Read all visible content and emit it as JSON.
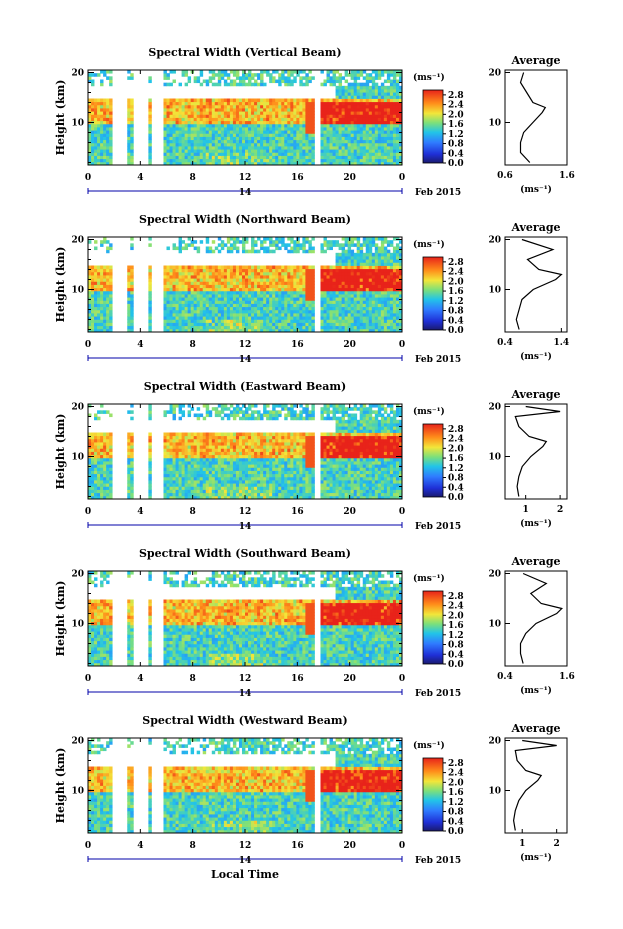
{
  "page": {
    "xlabel": "Local Time",
    "date_label": "Feb 2015",
    "day_label": "14",
    "ylabel": "Height (km)",
    "avg_title": "Average",
    "unit": "(ms⁻¹)",
    "avg_xlabel": "(ms⁻¹)"
  },
  "chart_data": [
    {
      "type": "heatmap",
      "title": "Spectral Width (Vertical Beam)",
      "xlabel": "Local Time",
      "ylabel": "Height (km)",
      "xlim": [
        0,
        24
      ],
      "ylim": [
        1.5,
        20.5
      ],
      "x_ticks": [
        "0",
        "4",
        "8",
        "12",
        "16",
        "20",
        "0"
      ],
      "y_ticks": [
        "20",
        "10"
      ],
      "colorbar": {
        "ticks": [
          "0.0",
          "0.4",
          "0.8",
          "1.2",
          "1.6",
          "2.0",
          "2.4",
          "2.8"
        ],
        "range": [
          0,
          3
        ]
      },
      "gaps_hours": [
        [
          1.8,
          2.9
        ],
        [
          3.4,
          4.5
        ],
        [
          4.9,
          5.8
        ],
        [
          17.2,
          17.8
        ]
      ],
      "avg_profile": {
        "xlim": [
          0.6,
          1.6
        ],
        "x_ticks": [
          "0.6",
          "1.6"
        ],
        "heights": [
          2,
          4,
          6,
          8,
          10,
          12,
          13,
          14,
          16,
          18,
          20
        ],
        "values": [
          1.0,
          0.85,
          0.85,
          0.9,
          1.05,
          1.2,
          1.25,
          1.05,
          0.95,
          0.85,
          0.9
        ]
      }
    },
    {
      "type": "heatmap",
      "title": "Spectral Width (Northward Beam)",
      "xlabel": "Local Time",
      "ylabel": "Height (km)",
      "xlim": [
        0,
        24
      ],
      "ylim": [
        1.5,
        20.5
      ],
      "x_ticks": [
        "0",
        "4",
        "8",
        "12",
        "16",
        "20",
        "0"
      ],
      "y_ticks": [
        "20",
        "10"
      ],
      "colorbar": {
        "ticks": [
          "0.0",
          "0.4",
          "0.8",
          "1.2",
          "1.6",
          "2.0",
          "2.4",
          "2.8"
        ],
        "range": [
          0,
          3
        ]
      },
      "gaps_hours": [
        [
          1.8,
          2.9
        ],
        [
          3.4,
          4.5
        ],
        [
          4.9,
          5.8
        ],
        [
          17.2,
          17.8
        ]
      ],
      "avg_profile": {
        "xlim": [
          0.4,
          1.5
        ],
        "x_ticks": [
          "0.4",
          "1.4"
        ],
        "heights": [
          2,
          4,
          6,
          8,
          10,
          12,
          13,
          14,
          16,
          18,
          20
        ],
        "values": [
          0.65,
          0.6,
          0.65,
          0.7,
          0.9,
          1.3,
          1.4,
          1.0,
          0.8,
          1.25,
          0.7
        ]
      }
    },
    {
      "type": "heatmap",
      "title": "Spectral Width (Eastward Beam)",
      "xlabel": "Local Time",
      "ylabel": "Height (km)",
      "xlim": [
        0,
        24
      ],
      "ylim": [
        1.5,
        20.5
      ],
      "x_ticks": [
        "0",
        "4",
        "8",
        "12",
        "16",
        "20",
        "0"
      ],
      "y_ticks": [
        "20",
        "10"
      ],
      "colorbar": {
        "ticks": [
          "0.0",
          "0.4",
          "0.8",
          "1.2",
          "1.6",
          "2.0",
          "2.4",
          "2.8"
        ],
        "range": [
          0,
          3
        ]
      },
      "gaps_hours": [
        [
          1.8,
          2.9
        ],
        [
          3.4,
          4.5
        ],
        [
          4.9,
          5.8
        ],
        [
          17.2,
          17.8
        ]
      ],
      "avg_profile": {
        "xlim": [
          0.4,
          2.2
        ],
        "x_ticks": [
          "1",
          "2"
        ],
        "heights": [
          2,
          4,
          6,
          8,
          10,
          12,
          13,
          14,
          16,
          18,
          19,
          20
        ],
        "values": [
          0.8,
          0.75,
          0.8,
          0.9,
          1.15,
          1.5,
          1.6,
          1.1,
          0.8,
          0.7,
          2.0,
          1.0
        ]
      }
    },
    {
      "type": "heatmap",
      "title": "Spectral Width (Southward Beam)",
      "xlabel": "Local Time",
      "ylabel": "Height (km)",
      "xlim": [
        0,
        24
      ],
      "ylim": [
        1.5,
        20.5
      ],
      "x_ticks": [
        "0",
        "4",
        "8",
        "12",
        "16",
        "20",
        "0"
      ],
      "y_ticks": [
        "20",
        "10"
      ],
      "colorbar": {
        "ticks": [
          "0.0",
          "0.4",
          "0.8",
          "1.2",
          "1.6",
          "2.0",
          "2.4",
          "2.8"
        ],
        "range": [
          0,
          3
        ]
      },
      "gaps_hours": [
        [
          1.8,
          2.9
        ],
        [
          3.4,
          4.5
        ],
        [
          4.9,
          5.8
        ],
        [
          17.2,
          17.8
        ]
      ],
      "avg_profile": {
        "xlim": [
          0.4,
          1.6
        ],
        "x_ticks": [
          "0.4",
          "1.6"
        ],
        "heights": [
          2,
          4,
          6,
          8,
          10,
          12,
          13,
          14,
          16,
          18,
          20
        ],
        "values": [
          0.75,
          0.7,
          0.7,
          0.8,
          1.0,
          1.4,
          1.5,
          1.1,
          0.9,
          1.2,
          0.75
        ]
      }
    },
    {
      "type": "heatmap",
      "title": "Spectral Width (Westward Beam)",
      "xlabel": "Local Time",
      "ylabel": "Height (km)",
      "xlim": [
        0,
        24
      ],
      "ylim": [
        1.5,
        20.5
      ],
      "x_ticks": [
        "0",
        "4",
        "8",
        "12",
        "16",
        "20",
        "0"
      ],
      "y_ticks": [
        "20",
        "10"
      ],
      "colorbar": {
        "ticks": [
          "0.0",
          "0.4",
          "0.8",
          "1.2",
          "1.6",
          "2.0",
          "2.4",
          "2.8"
        ],
        "range": [
          0,
          3
        ]
      },
      "gaps_hours": [
        [
          1.8,
          2.9
        ],
        [
          3.4,
          4.5
        ],
        [
          4.9,
          5.8
        ],
        [
          17.2,
          17.8
        ]
      ],
      "avg_profile": {
        "xlim": [
          0.5,
          2.3
        ],
        "x_ticks": [
          "1",
          "2"
        ],
        "heights": [
          2,
          4,
          6,
          8,
          10,
          12,
          13,
          14,
          16,
          18,
          19,
          20
        ],
        "values": [
          0.8,
          0.75,
          0.8,
          0.9,
          1.1,
          1.45,
          1.55,
          1.1,
          0.85,
          0.8,
          2.0,
          1.0
        ]
      }
    }
  ]
}
